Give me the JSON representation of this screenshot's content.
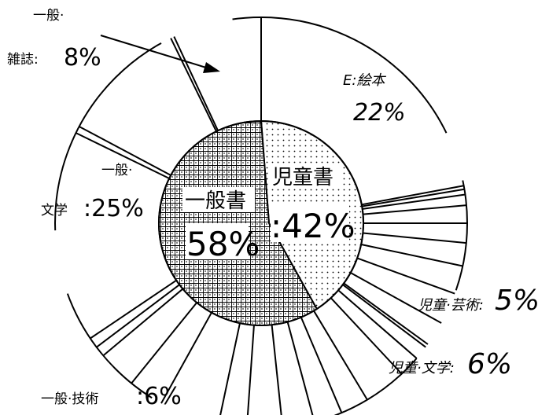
{
  "chart_data": {
    "type": "pie",
    "title": "",
    "inner_ring": [
      {
        "label": "一般書",
        "value": 58,
        "pct_text": "58%",
        "pattern": "grid"
      },
      {
        "label": "児童書",
        "value": 42,
        "pct_text": ":42%",
        "pattern": "dots"
      }
    ],
    "outer_labels": [
      {
        "line1": "一般·",
        "line2": "雑誌:",
        "pct_text": "8%",
        "value": 8
      },
      {
        "line1": "E:絵本",
        "pct_text": "22%",
        "value": 22
      },
      {
        "line1": "一般·",
        "line2": "文学",
        "pct_text": ":25%",
        "value": 25
      },
      {
        "line1": "児童·芸術:",
        "pct_text": "5%",
        "value": 5
      },
      {
        "line1": "児童·文学:",
        "pct_text": "6%",
        "value": 6
      },
      {
        "line1": "一般·技術",
        "pct_text": ":6%",
        "value": 6
      }
    ],
    "colors": {
      "stroke": "#000000",
      "background": "#ffffff"
    }
  }
}
